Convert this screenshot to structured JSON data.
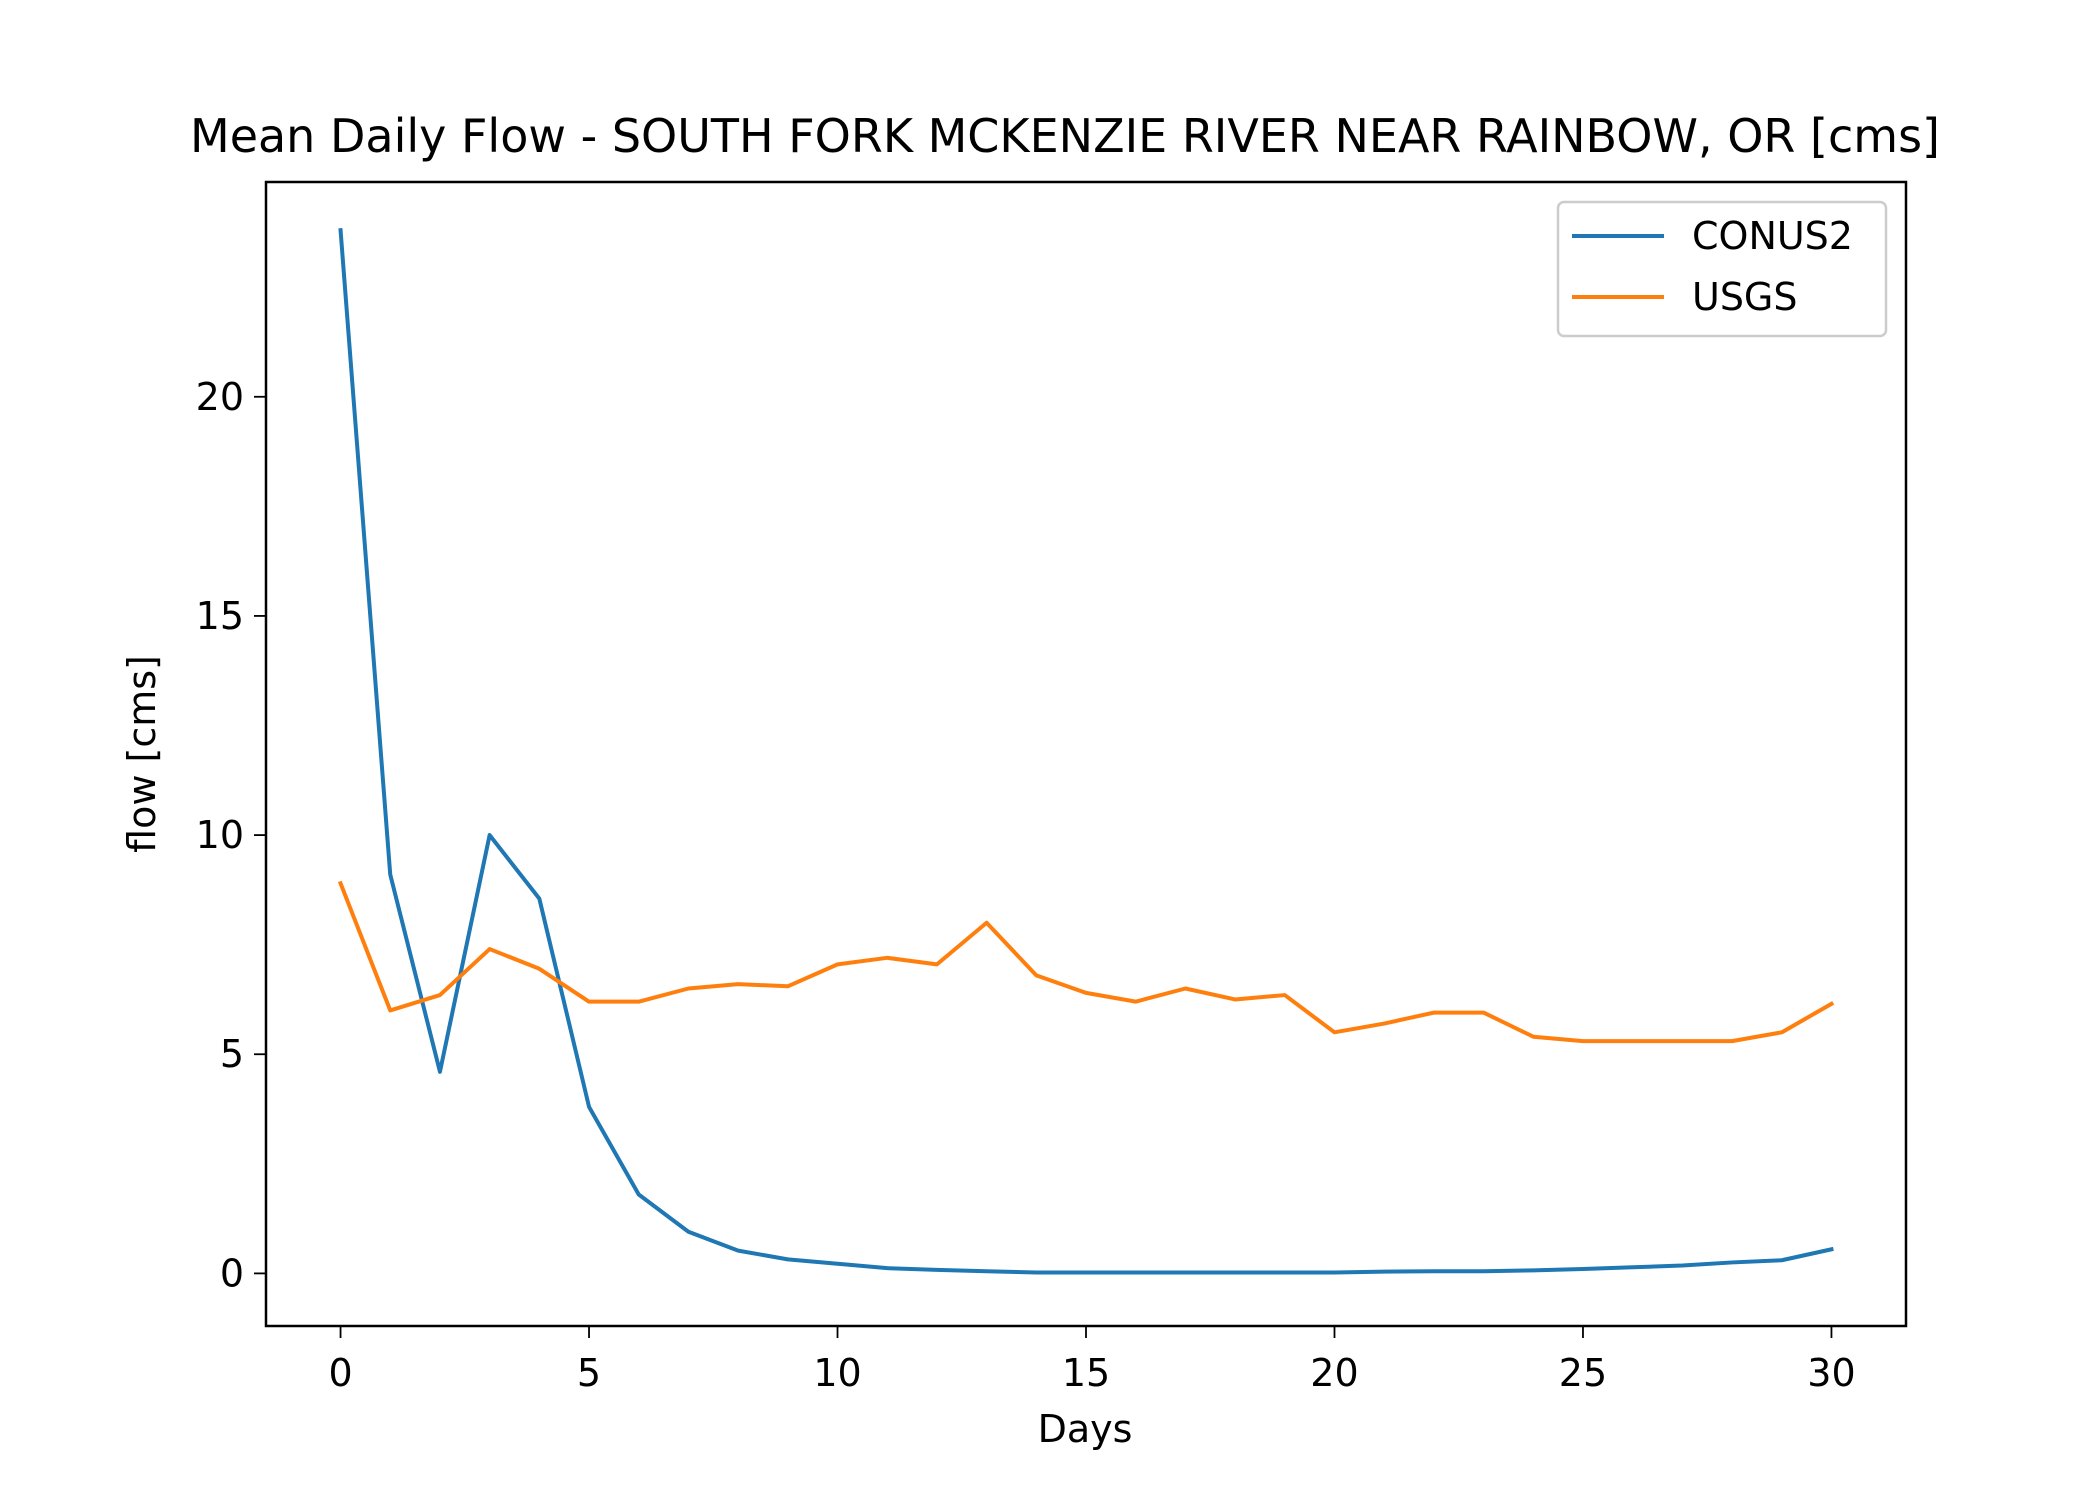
{
  "chart_data": {
    "type": "line",
    "title": "Mean Daily Flow - SOUTH FORK MCKENZIE RIVER NEAR RAINBOW, OR [cms]",
    "xlabel": "Days",
    "ylabel": "flow [cms]",
    "xlim": [
      -1.5,
      31.5
    ],
    "ylim": [
      -1.2,
      24.9
    ],
    "xticks": [
      0,
      5,
      10,
      15,
      20,
      25,
      30
    ],
    "yticks": [
      0,
      5,
      10,
      15,
      20
    ],
    "grid": false,
    "legend_position": "upper right",
    "x": [
      0,
      1,
      2,
      3,
      4,
      5,
      6,
      7,
      8,
      9,
      10,
      11,
      12,
      13,
      14,
      15,
      16,
      17,
      18,
      19,
      20,
      21,
      22,
      23,
      24,
      25,
      26,
      27,
      28,
      29,
      30
    ],
    "series": [
      {
        "name": "CONUS2",
        "color": "#1f77b4",
        "values": [
          23.8,
          9.1,
          4.6,
          10.0,
          8.55,
          3.8,
          1.8,
          0.95,
          0.52,
          0.32,
          0.22,
          0.12,
          0.08,
          0.05,
          0.02,
          0.02,
          0.02,
          0.02,
          0.02,
          0.02,
          0.02,
          0.04,
          0.05,
          0.05,
          0.07,
          0.1,
          0.14,
          0.18,
          0.25,
          0.3,
          0.55
        ]
      },
      {
        "name": "USGS",
        "color": "#ff7f0e",
        "values": [
          8.9,
          6.0,
          6.35,
          7.4,
          6.95,
          6.2,
          6.2,
          6.5,
          6.6,
          6.55,
          7.05,
          7.2,
          7.05,
          8.0,
          6.8,
          6.4,
          6.2,
          6.5,
          6.25,
          6.35,
          5.5,
          5.7,
          5.95,
          5.95,
          5.4,
          5.3,
          5.3,
          5.3,
          5.3,
          5.5,
          6.15
        ]
      }
    ]
  }
}
